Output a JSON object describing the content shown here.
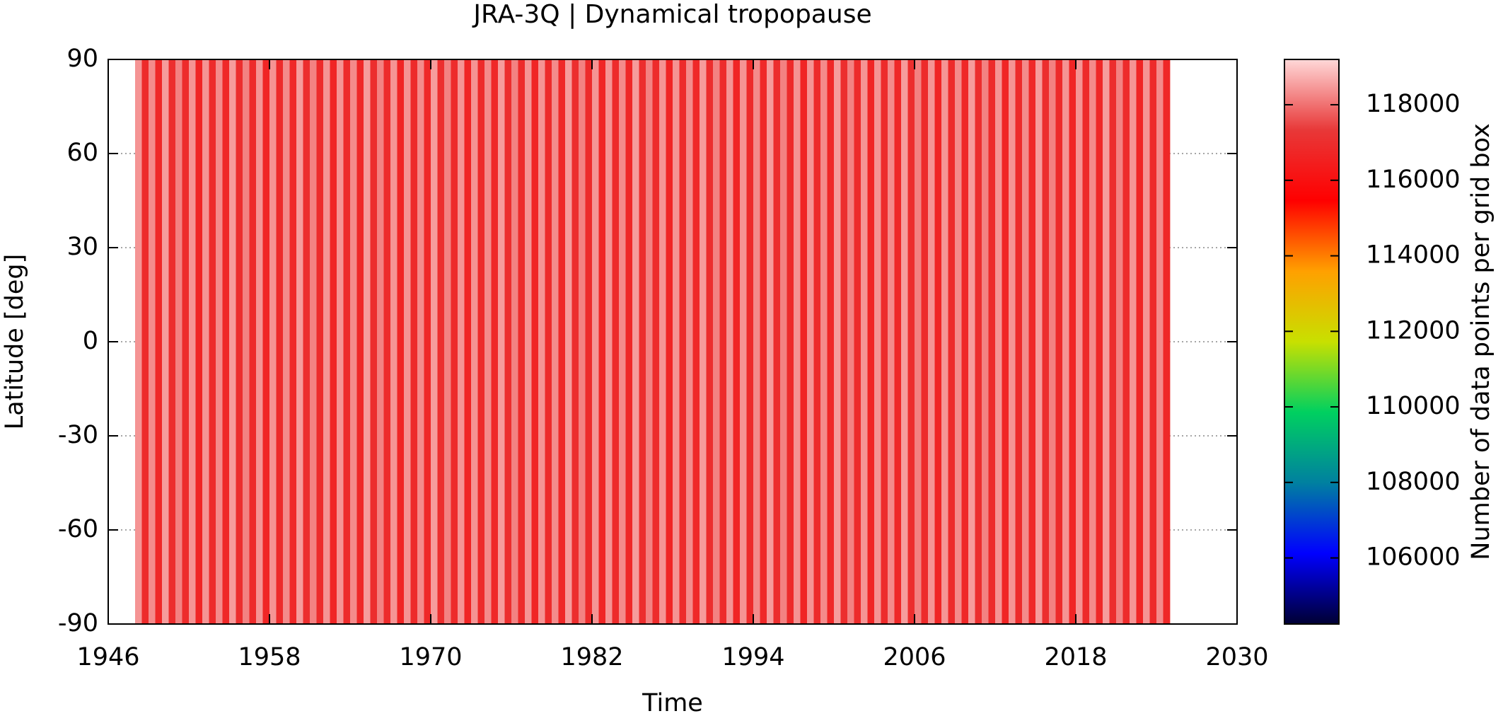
{
  "chart_data": {
    "type": "heatmap",
    "title": "JRA-3Q | Dynamical tropopause",
    "xlabel": "Time",
    "ylabel": "Latitude [deg]",
    "colorbar_label": "Number of data points per grid box",
    "xlim": [
      1946,
      2030
    ],
    "xticks": [
      1946,
      1958,
      1970,
      1982,
      1994,
      2006,
      2018,
      2030
    ],
    "ylim": [
      -90,
      90
    ],
    "yticks": [
      -90,
      -60,
      -30,
      0,
      30,
      60,
      90
    ],
    "clim": [
      104250,
      119200
    ],
    "cticks": [
      106000,
      108000,
      110000,
      112000,
      114000,
      116000,
      118000
    ],
    "colormap": [
      "#000033",
      "#0000ff",
      "#0080a0",
      "#00d060",
      "#c8e000",
      "#ffa000",
      "#ff0000",
      "#e83838",
      "#ffd8d8"
    ],
    "grid": true,
    "y_edges": [
      -90,
      90
    ],
    "x_edges": [
      1948,
      1948.5,
      1949,
      1949.5,
      1950,
      1950.5,
      1951,
      1951.5,
      1952,
      1952.5,
      1953,
      1953.5,
      1954,
      1954.5,
      1955,
      1955.5,
      1956,
      1956.5,
      1957,
      1957.5,
      1958,
      1958.5,
      1959,
      1959.5,
      1960,
      1960.5,
      1961,
      1961.5,
      1962,
      1962.5,
      1963,
      1963.5,
      1964,
      1964.5,
      1965,
      1965.5,
      1966,
      1966.5,
      1967,
      1967.5,
      1968,
      1968.5,
      1969,
      1969.5,
      1970,
      1970.5,
      1971,
      1971.5,
      1972,
      1972.5,
      1973,
      1973.5,
      1974,
      1974.5,
      1975,
      1975.5,
      1976,
      1976.5,
      1977,
      1977.5,
      1978,
      1978.5,
      1979,
      1979.5,
      1980,
      1980.5,
      1981,
      1981.5,
      1982,
      1982.5,
      1983,
      1983.5,
      1984,
      1984.5,
      1985,
      1985.5,
      1986,
      1986.5,
      1987,
      1987.5,
      1988,
      1988.5,
      1989,
      1989.5,
      1990,
      1990.5,
      1991,
      1991.5,
      1992,
      1992.5,
      1993,
      1993.5,
      1994,
      1994.5,
      1995,
      1995.5,
      1996,
      1996.5,
      1997,
      1997.5,
      1998,
      1998.5,
      1999,
      1999.5,
      2000,
      2000.5,
      2001,
      2001.5,
      2002,
      2002.5,
      2003,
      2003.5,
      2004,
      2004.5,
      2005,
      2005.5,
      2006,
      2006.5,
      2007,
      2007.5,
      2008,
      2008.5,
      2009,
      2009.5,
      2010,
      2010.5,
      2011,
      2011.5,
      2012,
      2012.5,
      2013,
      2013.5,
      2014,
      2014.5,
      2015,
      2015.5,
      2016,
      2016.5,
      2017,
      2017.5,
      2018,
      2018.5,
      2019,
      2019.5,
      2020,
      2020.5,
      2021,
      2021.5,
      2022,
      2022.5,
      2023,
      2023.5,
      2024,
      2024.5,
      2025
    ],
    "z": [
      [
        118400,
        116900,
        118300,
        116800,
        118500,
        117000,
        118200,
        116900,
        118400,
        116700,
        118400,
        116900,
        118300,
        116800,
        118500,
        117000,
        118200,
        116900,
        118400,
        116700,
        118400,
        116900,
        118300,
        116800,
        118500,
        117000,
        118200,
        116900,
        118400,
        116700,
        118400,
        116900,
        118300,
        116800,
        118500,
        117000,
        118200,
        116900,
        118400,
        116700,
        118400,
        116900,
        118300,
        116800,
        118500,
        117000,
        118200,
        116900,
        118400,
        116700,
        118400,
        116900,
        118300,
        116800,
        118500,
        117000,
        118200,
        116900,
        118400,
        116700,
        118400,
        116900,
        118300,
        116800,
        118500,
        117000,
        118200,
        116900,
        118400,
        116700,
        118400,
        116900,
        118300,
        116800,
        118500,
        117000,
        118200,
        116900,
        118400,
        116700,
        118400,
        116900,
        118300,
        116800,
        118500,
        117000,
        118200,
        116900,
        118400,
        116700,
        118400,
        116900,
        118300,
        116800,
        118500,
        117000,
        118200,
        116900,
        118400,
        116700,
        118400,
        116900,
        118300,
        116800,
        118500,
        117000,
        118200,
        116900,
        118400,
        116700,
        118400,
        116900,
        118300,
        116800,
        118500,
        117000,
        118200,
        116900,
        118400,
        116700,
        118400,
        116900,
        118300,
        116800,
        118500,
        117000,
        118200,
        116900,
        118400,
        116700,
        118400,
        116900,
        118300,
        116800,
        118500,
        117000,
        118200,
        116900,
        118400,
        116700,
        118400,
        116900,
        118300,
        116800,
        118500,
        117000,
        118200,
        116900,
        118400,
        116700,
        118400,
        116900,
        118300,
        116800
      ]
    ]
  }
}
